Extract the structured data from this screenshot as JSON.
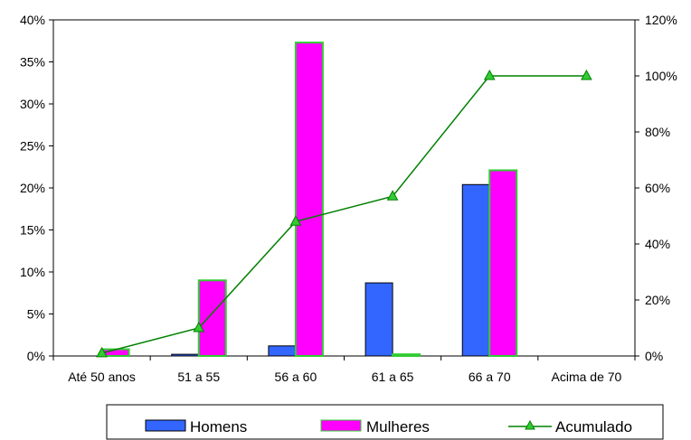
{
  "chart_data": {
    "type": "bar",
    "categories": [
      "Até 50 anos",
      "51 a 55",
      "56 a 60",
      "61 a 65",
      "66 a 70",
      "Acima de 70"
    ],
    "series": [
      {
        "name": "Homens",
        "type": "bar",
        "axis": "left",
        "color": "#3366FF",
        "values": [
          0.0,
          0.2,
          1.2,
          8.7,
          20.4,
          0.0
        ]
      },
      {
        "name": "Mulheres",
        "type": "bar",
        "axis": "left",
        "color": "#FF00FF",
        "values": [
          0.8,
          9.0,
          37.3,
          0.2,
          22.1,
          0.0
        ]
      },
      {
        "name": "Acumulado",
        "type": "line",
        "axis": "right",
        "color": "#008000",
        "marker_color": "#33CC33",
        "values": [
          1,
          10,
          48,
          57,
          100,
          100
        ]
      }
    ],
    "y_left": {
      "min": 0,
      "max": 40,
      "step": 5,
      "ticks": [
        "0%",
        "5%",
        "10%",
        "15%",
        "20%",
        "25%",
        "30%",
        "35%",
        "40%"
      ]
    },
    "y_right": {
      "min": 0,
      "max": 120,
      "step": 20,
      "ticks": [
        "0%",
        "20%",
        "40%",
        "60%",
        "80%",
        "100%",
        "120%"
      ]
    },
    "grid": false,
    "legend_position": "bottom",
    "colors": {
      "bar_border_women": "#33CC33",
      "bar_border_men": "#000000"
    }
  }
}
